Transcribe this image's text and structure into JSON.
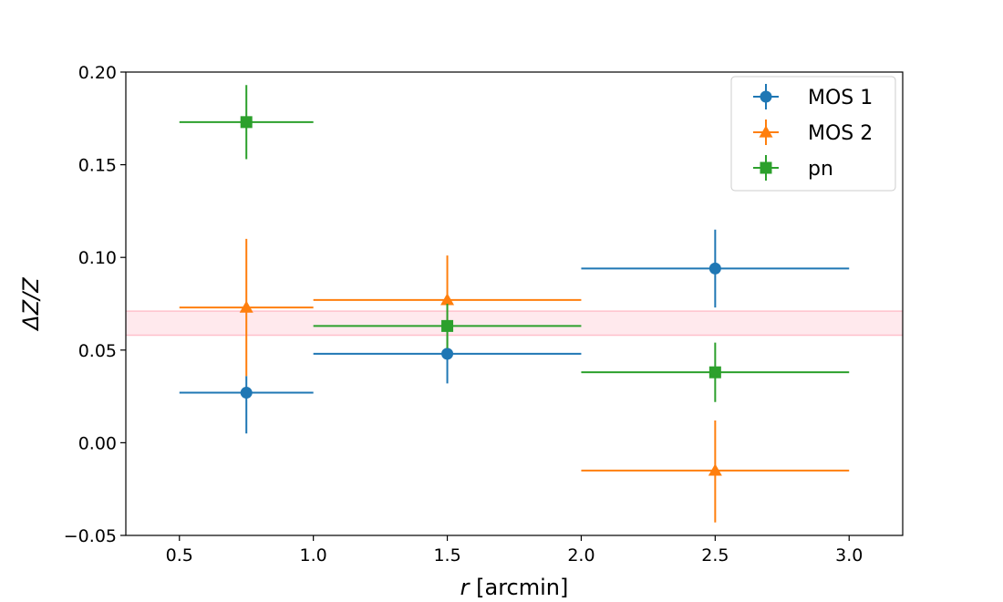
{
  "chart_data": {
    "type": "scatter",
    "xlabel_var": "r",
    "xlabel_unit": "[arcmin]",
    "ylabel": "ΔZ/Z",
    "xlim": [
      0.3,
      3.2
    ],
    "ylim": [
      -0.05,
      0.2
    ],
    "xticks": [
      0.5,
      1.0,
      1.5,
      2.0,
      2.5,
      3.0
    ],
    "xtick_labels": [
      "0.5",
      "1.0",
      "1.5",
      "2.0",
      "2.5",
      "3.0"
    ],
    "yticks": [
      -0.05,
      0.0,
      0.05,
      0.1,
      0.15,
      0.2
    ],
    "ytick_labels": [
      "−0.05",
      "0.00",
      "0.05",
      "0.10",
      "0.15",
      "0.20"
    ],
    "band": {
      "y_low": 0.058,
      "y_high": 0.071,
      "color": "#ffc0cb"
    },
    "legend_position": "top-right",
    "series": [
      {
        "name": "MOS 1",
        "marker": "circle",
        "color": "#1f77b4",
        "points": [
          {
            "x": 0.75,
            "xerr": 0.25,
            "y": 0.027,
            "yerr_low": 0.022,
            "yerr_high": 0.009
          },
          {
            "x": 1.5,
            "xerr": 0.5,
            "y": 0.048,
            "yerr_low": 0.016,
            "yerr_high": 0.016
          },
          {
            "x": 2.5,
            "xerr": 0.5,
            "y": 0.094,
            "yerr_low": 0.021,
            "yerr_high": 0.021
          }
        ]
      },
      {
        "name": "MOS 2",
        "marker": "triangle",
        "color": "#ff7f0e",
        "points": [
          {
            "x": 0.75,
            "xerr": 0.25,
            "y": 0.073,
            "yerr_low": 0.037,
            "yerr_high": 0.037
          },
          {
            "x": 1.5,
            "xerr": 0.5,
            "y": 0.077,
            "yerr_low": 0.025,
            "yerr_high": 0.024
          },
          {
            "x": 2.5,
            "xerr": 0.5,
            "y": -0.015,
            "yerr_low": 0.028,
            "yerr_high": 0.027
          }
        ]
      },
      {
        "name": "pn",
        "marker": "square",
        "color": "#2ca02c",
        "points": [
          {
            "x": 0.75,
            "xerr": 0.25,
            "y": 0.173,
            "yerr_low": 0.02,
            "yerr_high": 0.02
          },
          {
            "x": 1.5,
            "xerr": 0.5,
            "y": 0.063,
            "yerr_low": 0.012,
            "yerr_high": 0.012
          },
          {
            "x": 2.5,
            "xerr": 0.5,
            "y": 0.038,
            "yerr_low": 0.016,
            "yerr_high": 0.016
          }
        ]
      }
    ]
  }
}
